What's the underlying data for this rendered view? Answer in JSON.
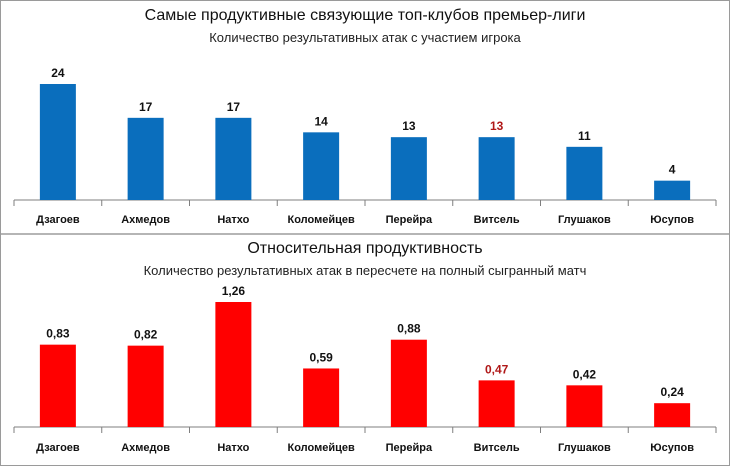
{
  "chart_data": [
    {
      "type": "bar",
      "title": "Самые продуктивные связующие топ-клубов премьер-лиги",
      "subtitle": "Количество результативных атак с участием игрока",
      "categories": [
        "Дзагоев",
        "Ахмедов",
        "Натхо",
        "Коломейцев",
        "Перейра",
        "Витсель",
        "Глушаков",
        "Юсупов"
      ],
      "values": [
        24,
        17,
        17,
        14,
        13,
        13,
        11,
        4
      ],
      "labels": [
        "24",
        "17",
        "17",
        "14",
        "13",
        "13",
        "11",
        "4"
      ],
      "bar_color": "#0A6EBD",
      "label_color": "#111111",
      "highlight_index": 5,
      "highlight_label_color": "#B01818",
      "ylim": [
        0,
        24
      ],
      "grid": false
    },
    {
      "type": "bar",
      "title": "Относительная продуктивность",
      "subtitle": "Количество результативных атак в пересчете на полный сыгранный матч",
      "categories": [
        "Дзагоев",
        "Ахмедов",
        "Натхо",
        "Коломейцев",
        "Перейра",
        "Витсель",
        "Глушаков",
        "Юсупов"
      ],
      "values": [
        0.83,
        0.82,
        1.26,
        0.59,
        0.88,
        0.47,
        0.42,
        0.24
      ],
      "labels": [
        "0,83",
        "0,82",
        "1,26",
        "0,59",
        "0,88",
        "0,47",
        "0,42",
        "0,24"
      ],
      "bar_color": "#FF0000",
      "label_color": "#111111",
      "highlight_index": 5,
      "highlight_label_color": "#B01818",
      "ylim": [
        0,
        1.26
      ],
      "grid": false
    }
  ]
}
